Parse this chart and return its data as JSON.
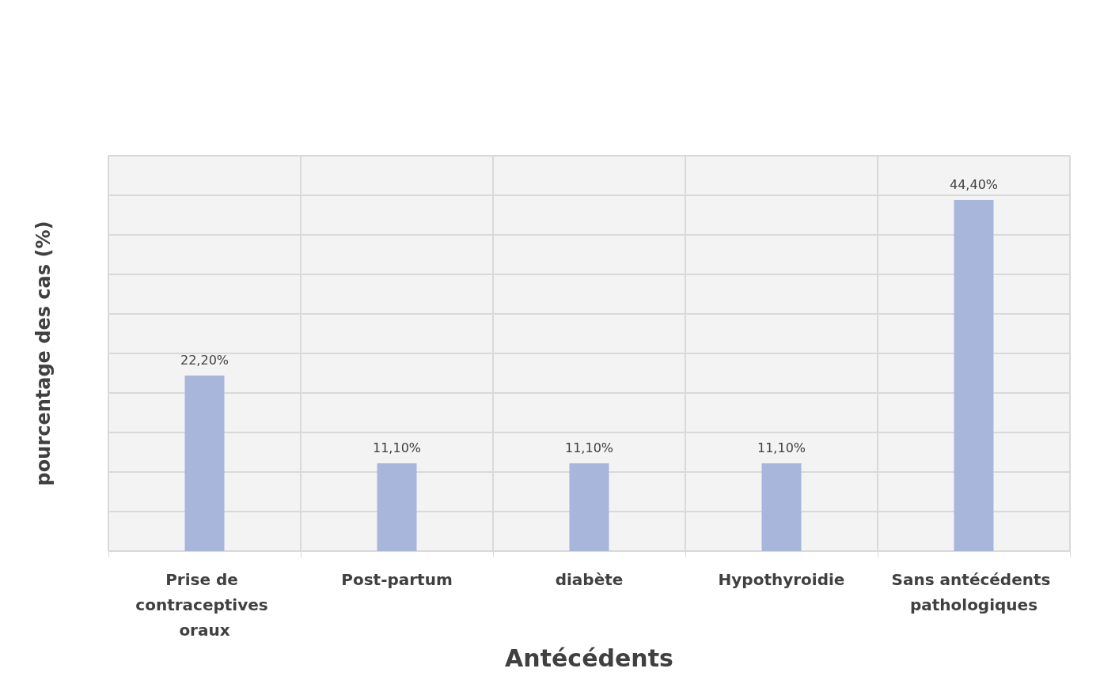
{
  "chart_data": {
    "type": "bar",
    "xlabel": "Antécédents",
    "ylabel": "pourcentage des cas (%)",
    "categories": [
      "Prise de contraceptives oraux",
      "Post-partum",
      "diabète",
      "Hypothyroidie",
      "Sans antécédents pathologiques"
    ],
    "values": [
      22.2,
      11.1,
      11.1,
      11.1,
      44.4
    ],
    "value_labels": [
      "22,20%",
      "11,10%",
      "11,10%",
      "11,10%",
      "44,40%"
    ],
    "color": "#a9b6db",
    "ylim": [
      0,
      50
    ],
    "yticks": [
      {
        "value": 0,
        "label": null
      },
      {
        "value": 5,
        "label": null
      },
      {
        "value": 10,
        "label": null
      },
      {
        "value": 15,
        "label": null
      },
      {
        "value": 20,
        "label": null
      },
      {
        "value": 25,
        "label": null
      },
      {
        "value": 30,
        "label": null
      },
      {
        "value": 35,
        "label": null
      },
      {
        "value": 40,
        "label": null
      },
      {
        "value": 45,
        "label": null
      },
      {
        "value": 50,
        "label": null
      }
    ],
    "tick_labels": "x",
    "grid": true
  }
}
